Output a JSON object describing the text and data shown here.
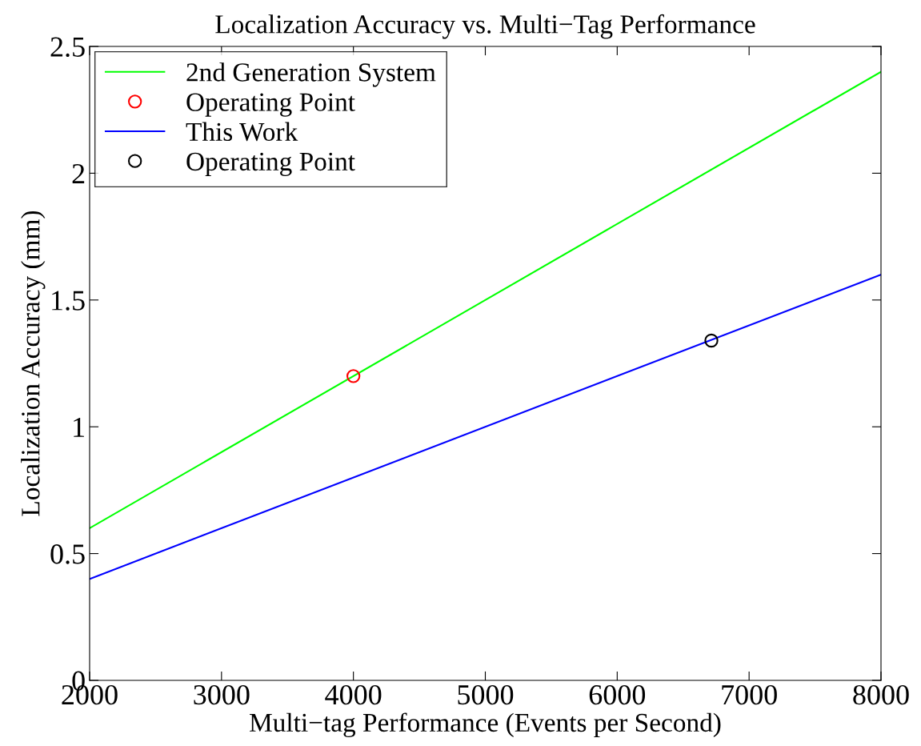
{
  "chart_data": {
    "type": "line",
    "title": "Localization Accuracy vs. Multi−Tag Performance",
    "xlabel": "Multi−tag Performance (Events per Second)",
    "ylabel": "Localization Accuracy (mm)",
    "series": [
      {
        "name": "2nd Generation System",
        "color": "#00ff00",
        "x": [
          2000,
          8000
        ],
        "values": [
          0.6,
          2.4
        ]
      },
      {
        "name": "Operating Point",
        "type": "scatter",
        "marker": "circle",
        "color": "#ff0000",
        "x": [
          4000
        ],
        "values": [
          1.2
        ]
      },
      {
        "name": "This Work",
        "color": "#0000ff",
        "x": [
          2000,
          8000
        ],
        "values": [
          0.4,
          1.6
        ]
      },
      {
        "name": "Operating Point",
        "type": "scatter",
        "marker": "circle",
        "color": "#000000",
        "x": [
          6714
        ],
        "values": [
          1.34
        ]
      }
    ],
    "xlim": [
      2000,
      8000
    ],
    "xticks": [
      2000,
      3000,
      4000,
      5000,
      6000,
      7000,
      8000
    ],
    "ylim": [
      0,
      2.5
    ],
    "yticks": [
      0,
      0.5,
      1,
      1.5,
      2,
      2.5
    ],
    "grid": false,
    "legend": "top left"
  }
}
